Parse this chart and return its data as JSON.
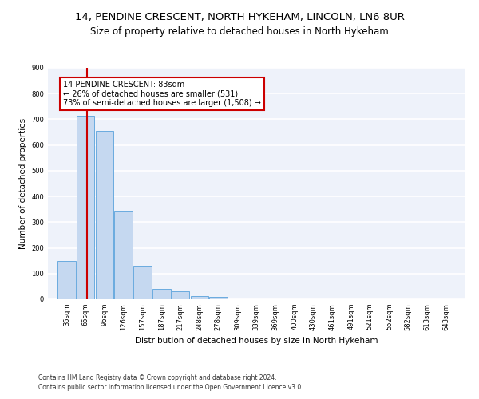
{
  "title1": "14, PENDINE CRESCENT, NORTH HYKEHAM, LINCOLN, LN6 8UR",
  "title2": "Size of property relative to detached houses in North Hykeham",
  "xlabel": "Distribution of detached houses by size in North Hykeham",
  "ylabel": "Number of detached properties",
  "footnote1": "Contains HM Land Registry data © Crown copyright and database right 2024.",
  "footnote2": "Contains public sector information licensed under the Open Government Licence v3.0.",
  "bar_edges": [
    35,
    65,
    96,
    126,
    157,
    187,
    217,
    248,
    278,
    309,
    339,
    369,
    400,
    430,
    461,
    491,
    521,
    552,
    582,
    613,
    643
  ],
  "bar_heights": [
    150,
    715,
    655,
    340,
    130,
    40,
    30,
    12,
    10,
    0,
    0,
    0,
    0,
    0,
    0,
    0,
    0,
    0,
    0,
    0
  ],
  "bar_color": "#c5d8f0",
  "bar_edge_color": "#6aabdf",
  "property_line_x": 83,
  "property_line_color": "#cc0000",
  "annotation_line1": "14 PENDINE CRESCENT: 83sqm",
  "annotation_line2": "← 26% of detached houses are smaller (531)",
  "annotation_line3": "73% of semi-detached houses are larger (1,508) →",
  "annotation_box_color": "#cc0000",
  "ylim": [
    0,
    900
  ],
  "yticks": [
    0,
    100,
    200,
    300,
    400,
    500,
    600,
    700,
    800,
    900
  ],
  "bg_color": "#eef2fa",
  "grid_color": "#ffffff",
  "title1_fontsize": 9.5,
  "title2_fontsize": 8.5,
  "xlabel_fontsize": 7.5,
  "ylabel_fontsize": 7.5,
  "footnote_fontsize": 5.5,
  "annotation_fontsize": 7.0,
  "tick_fontsize": 6.0
}
